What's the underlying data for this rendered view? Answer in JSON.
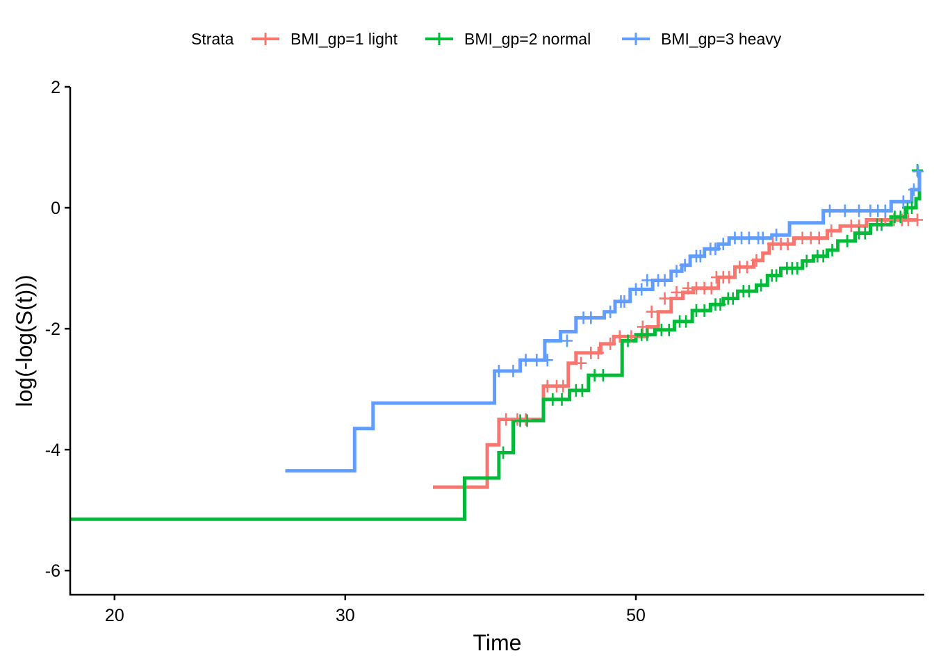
{
  "chart_data": {
    "type": "line",
    "step": true,
    "x_scale": "log",
    "xlabel": "Time",
    "ylabel": "log(-log(S(t)))",
    "xlim": [
      18.5,
      83
    ],
    "ylim": [
      -6.4,
      2.0
    ],
    "x_ticks": [
      20,
      30,
      50
    ],
    "x_tick_labels": [
      "20",
      "30",
      "50"
    ],
    "y_ticks": [
      -6,
      -4,
      -2,
      0,
      2
    ],
    "y_tick_labels": [
      "-6",
      "-4",
      "-2",
      "0",
      "2"
    ],
    "grid": false,
    "legend": {
      "position": "top",
      "title": "Strata"
    },
    "series": [
      {
        "name": "BMI_gp=1 light",
        "color": "#F8766D",
        "points": [
          [
            35.0,
            -4.62
          ],
          [
            38.5,
            -3.92
          ],
          [
            39.3,
            -3.5
          ],
          [
            42.5,
            -2.95
          ],
          [
            44.4,
            -2.57
          ],
          [
            45.0,
            -2.4
          ],
          [
            47.0,
            -2.25
          ],
          [
            48.1,
            -2.13
          ],
          [
            51.0,
            -1.97
          ],
          [
            52.0,
            -1.72
          ],
          [
            53.2,
            -1.5
          ],
          [
            54.3,
            -1.4
          ],
          [
            55.3,
            -1.33
          ],
          [
            57.8,
            -1.15
          ],
          [
            59.5,
            -0.98
          ],
          [
            61.5,
            -0.87
          ],
          [
            62.5,
            -0.75
          ],
          [
            63.2,
            -0.6
          ],
          [
            66.0,
            -0.5
          ],
          [
            70.0,
            -0.38
          ],
          [
            71.6,
            -0.3
          ],
          [
            75.0,
            -0.2
          ],
          [
            82.0,
            -0.2
          ]
        ],
        "censor_x": [
          39.8,
          40.6,
          41.2,
          42.8,
          43.5,
          44.0,
          45.4,
          46.2,
          46.8,
          47.8,
          48.6,
          49.6,
          50.6,
          51.4,
          52.6,
          53.7,
          54.8,
          55.6,
          56.4,
          57.1,
          57.6,
          58.3,
          58.9,
          60.0,
          60.8,
          61.8,
          63.6,
          64.5,
          65.3,
          67.0,
          68.0,
          69.0,
          70.5,
          73.0,
          74.0,
          77.5,
          78.7,
          79.8,
          80.7,
          82.0
        ],
        "censor_y": [
          -3.5,
          -3.5,
          -3.5,
          -2.95,
          -2.95,
          -2.95,
          -2.57,
          -2.4,
          -2.4,
          -2.25,
          -2.13,
          -2.13,
          -1.97,
          -1.72,
          -1.5,
          -1.4,
          -1.33,
          -1.33,
          -1.33,
          -1.33,
          -1.15,
          -1.15,
          -1.15,
          -0.98,
          -0.98,
          -0.87,
          -0.6,
          -0.6,
          -0.6,
          -0.5,
          -0.5,
          -0.5,
          -0.38,
          -0.3,
          -0.3,
          -0.2,
          -0.2,
          -0.2,
          -0.2,
          -0.2
        ]
      },
      {
        "name": "BMI_gp=2 normal",
        "color": "#00BA38",
        "points": [
          [
            18.5,
            -5.15
          ],
          [
            37.0,
            -5.15
          ],
          [
            37.0,
            -4.47
          ],
          [
            39.3,
            -4.05
          ],
          [
            40.3,
            -3.52
          ],
          [
            42.5,
            -3.17
          ],
          [
            44.5,
            -3.02
          ],
          [
            46.0,
            -2.77
          ],
          [
            48.8,
            -2.2
          ],
          [
            50.0,
            -2.1
          ],
          [
            51.7,
            -2.02
          ],
          [
            53.5,
            -1.88
          ],
          [
            55.2,
            -1.7
          ],
          [
            57.0,
            -1.6
          ],
          [
            58.3,
            -1.5
          ],
          [
            59.8,
            -1.38
          ],
          [
            61.8,
            -1.28
          ],
          [
            63.0,
            -1.12
          ],
          [
            64.5,
            -1.0
          ],
          [
            67.0,
            -0.88
          ],
          [
            68.3,
            -0.8
          ],
          [
            70.0,
            -0.7
          ],
          [
            71.3,
            -0.55
          ],
          [
            73.5,
            -0.42
          ],
          [
            75.5,
            -0.28
          ],
          [
            78.3,
            -0.15
          ],
          [
            80.3,
            0.0
          ],
          [
            81.8,
            0.15
          ],
          [
            82.3,
            0.62
          ]
        ],
        "censor_x": [
          39.6,
          40.8,
          41.3,
          43.2,
          43.9,
          45.0,
          45.5,
          46.5,
          47.2,
          49.3,
          50.5,
          51.0,
          52.3,
          53.0,
          54.0,
          54.6,
          55.6,
          56.4,
          57.5,
          58.0,
          58.8,
          59.3,
          60.4,
          61.0,
          62.3,
          63.5,
          64.0,
          65.2,
          65.8,
          66.4,
          67.5,
          68.8,
          69.5,
          70.6,
          72.5,
          74.0,
          74.8,
          76.4,
          77.0,
          78.8,
          79.6,
          80.6,
          81.2,
          82.0
        ],
        "censor_y": [
          -4.05,
          -3.52,
          -3.52,
          -3.17,
          -3.17,
          -3.02,
          -3.02,
          -2.77,
          -2.77,
          -2.2,
          -2.1,
          -2.1,
          -2.02,
          -2.02,
          -1.88,
          -1.88,
          -1.7,
          -1.7,
          -1.6,
          -1.6,
          -1.5,
          -1.5,
          -1.38,
          -1.38,
          -1.28,
          -1.12,
          -1.12,
          -1.0,
          -1.0,
          -1.0,
          -0.88,
          -0.8,
          -0.8,
          -0.7,
          -0.55,
          -0.42,
          -0.42,
          -0.28,
          -0.28,
          -0.15,
          -0.15,
          0.0,
          0.0,
          0.62
        ]
      },
      {
        "name": "BMI_gp=3 heavy",
        "color": "#619CFF",
        "points": [
          [
            27.0,
            -4.35
          ],
          [
            30.5,
            -3.65
          ],
          [
            31.5,
            -3.23
          ],
          [
            39.0,
            -2.7
          ],
          [
            40.8,
            -2.52
          ],
          [
            42.6,
            -2.2
          ],
          [
            43.8,
            -2.05
          ],
          [
            45.0,
            -1.82
          ],
          [
            47.3,
            -1.72
          ],
          [
            48.2,
            -1.55
          ],
          [
            49.5,
            -1.35
          ],
          [
            51.5,
            -1.2
          ],
          [
            53.2,
            -1.05
          ],
          [
            54.2,
            -0.95
          ],
          [
            55.0,
            -0.8
          ],
          [
            56.4,
            -0.68
          ],
          [
            57.8,
            -0.6
          ],
          [
            58.9,
            -0.5
          ],
          [
            63.5,
            -0.45
          ],
          [
            65.5,
            -0.25
          ],
          [
            69.5,
            -0.05
          ],
          [
            78.3,
            0.1
          ],
          [
            81.2,
            0.3
          ],
          [
            82.3,
            0.6
          ]
        ],
        "censor_x": [
          39.3,
          40.3,
          41.2,
          42.0,
          42.8,
          44.3,
          45.6,
          46.2,
          47.8,
          48.7,
          49.0,
          50.0,
          50.5,
          51.0,
          52.0,
          52.6,
          53.7,
          54.5,
          55.6,
          56.0,
          57.0,
          57.5,
          58.3,
          59.5,
          60.2,
          61.0,
          62.0,
          62.5,
          64.0,
          70.3,
          72.2,
          74.0,
          75.5,
          76.5,
          77.5,
          80.0,
          81.5,
          82.1
        ],
        "censor_y": [
          -2.7,
          -2.7,
          -2.52,
          -2.52,
          -2.52,
          -2.2,
          -1.82,
          -1.82,
          -1.72,
          -1.55,
          -1.55,
          -1.35,
          -1.35,
          -1.2,
          -1.2,
          -1.2,
          -1.05,
          -0.95,
          -0.8,
          -0.8,
          -0.68,
          -0.68,
          -0.6,
          -0.5,
          -0.5,
          -0.5,
          -0.5,
          -0.5,
          -0.45,
          -0.05,
          -0.05,
          -0.05,
          -0.05,
          -0.05,
          -0.05,
          0.1,
          0.3,
          0.6
        ]
      }
    ]
  }
}
